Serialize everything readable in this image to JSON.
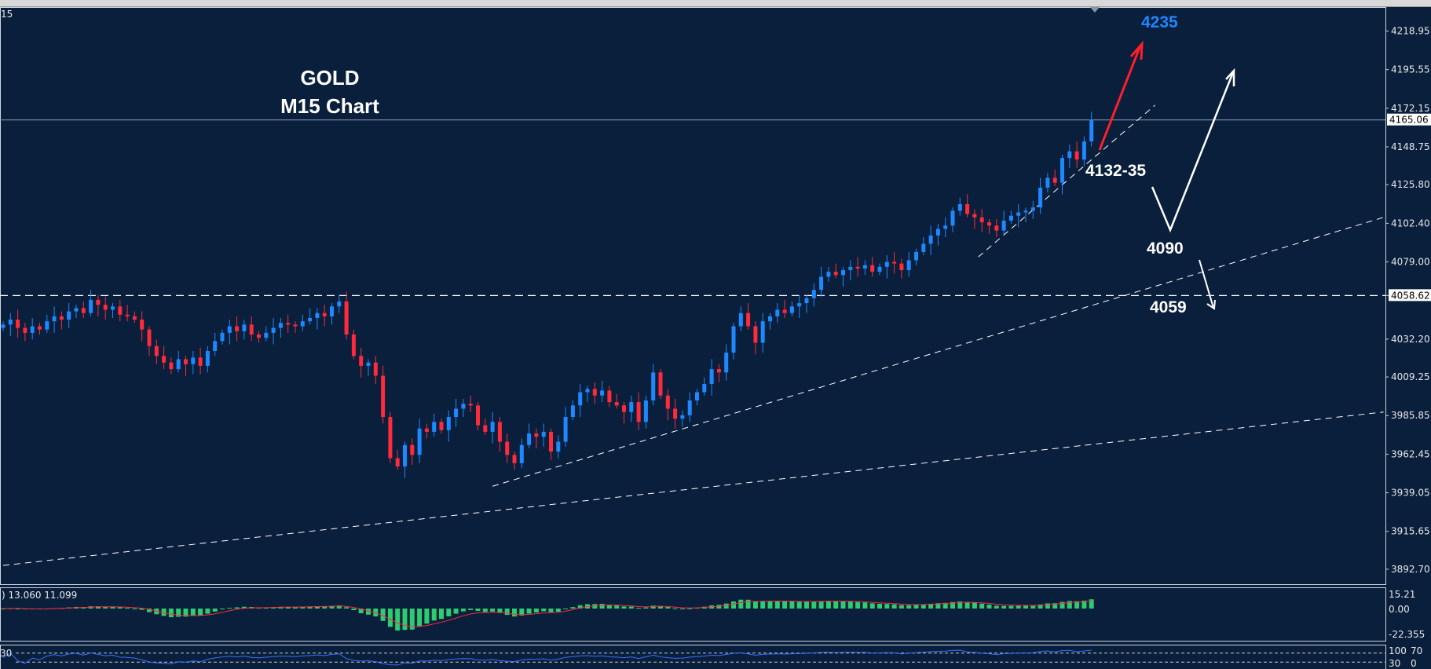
{
  "window": {
    "symbol_tag": "15"
  },
  "chart_data": {
    "type": "candlestick",
    "title": "GOLD",
    "subtitle": "M15 Chart",
    "ylim": [
      3880,
      4240
    ],
    "y_ticks": [
      "4218.95",
      "4195.55",
      "4172.15",
      "4148.75",
      "4125.80",
      "4102.40",
      "4079.00",
      "4058.62",
      "4032.20",
      "4009.25",
      "3985.85",
      "3962.45",
      "3939.05",
      "3915.65",
      "3892.70"
    ],
    "current_price": "4165.06",
    "level_price": "4058.62",
    "bull_color": "#1e88ff",
    "bear_color": "#ff2a3a",
    "closes": [
      4041,
      4044,
      4039,
      4036,
      4040,
      4038,
      4043,
      4046,
      4044,
      4049,
      4051,
      4048,
      4056,
      4053,
      4050,
      4052,
      4047,
      4046,
      4044,
      4038,
      4028,
      4022,
      4018,
      4014,
      4020,
      4017,
      4021,
      4016,
      4025,
      4031,
      4036,
      4040,
      4037,
      4041,
      4035,
      4033,
      4036,
      4039,
      4042,
      4041,
      4040,
      4043,
      4045,
      4048,
      4046,
      4052,
      4055,
      4035,
      4022,
      4016,
      4018,
      4010,
      3985,
      3960,
      3955,
      3968,
      3962,
      3978,
      3976,
      3982,
      3977,
      3985,
      3990,
      3993,
      3992,
      3980,
      3976,
      3982,
      3970,
      3962,
      3957,
      3968,
      3975,
      3973,
      3976,
      3964,
      3970,
      3985,
      3992,
      4000,
      4002,
      3998,
      4001,
      3994,
      3992,
      3988,
      3994,
      3982,
      3995,
      4012,
      3998,
      3990,
      3984,
      3986,
      3995,
      4000,
      4005,
      4014,
      4012,
      4024,
      4040,
      4048,
      4040,
      4030,
      4043,
      4046,
      4050,
      4048,
      4052,
      4054,
      4057,
      4062,
      4070,
      4073,
      4071,
      4074,
      4076,
      4075,
      4077,
      4073,
      4076,
      4079,
      4078,
      4074,
      4080,
      4085,
      4090,
      4095,
      4099,
      4101,
      4110,
      4114,
      4108,
      4106,
      4103,
      4101,
      4098,
      4104,
      4107,
      4109,
      4110,
      4112,
      4124,
      4130,
      4127,
      4142,
      4146,
      4141,
      4152,
      4165.06
    ],
    "trendlines": [
      {
        "style": "dashed",
        "from": [
          0,
          3895
        ],
        "to": [
          189,
          3988
        ]
      },
      {
        "style": "dashed",
        "from": [
          67,
          3943
        ],
        "to": [
          189,
          4106
        ]
      },
      {
        "style": "dashed",
        "from": [
          133.5,
          4082
        ],
        "to": [
          157.7,
          4174
        ]
      }
    ],
    "annotations": {
      "target": "4235",
      "support1": "4132-35",
      "support2": "4090",
      "support3": "4059"
    },
    "macd": {
      "label": ") 13.060 11.099",
      "ticks": [
        "15.21",
        "0.00",
        "-22.355"
      ],
      "hist_color": "#2ecc71",
      "signal_color": "#ff2a3a"
    },
    "rsi": {
      "label": "30",
      "ticks": [
        "100",
        "70",
        "30",
        "0"
      ],
      "line_color": "#3b6fff"
    }
  }
}
